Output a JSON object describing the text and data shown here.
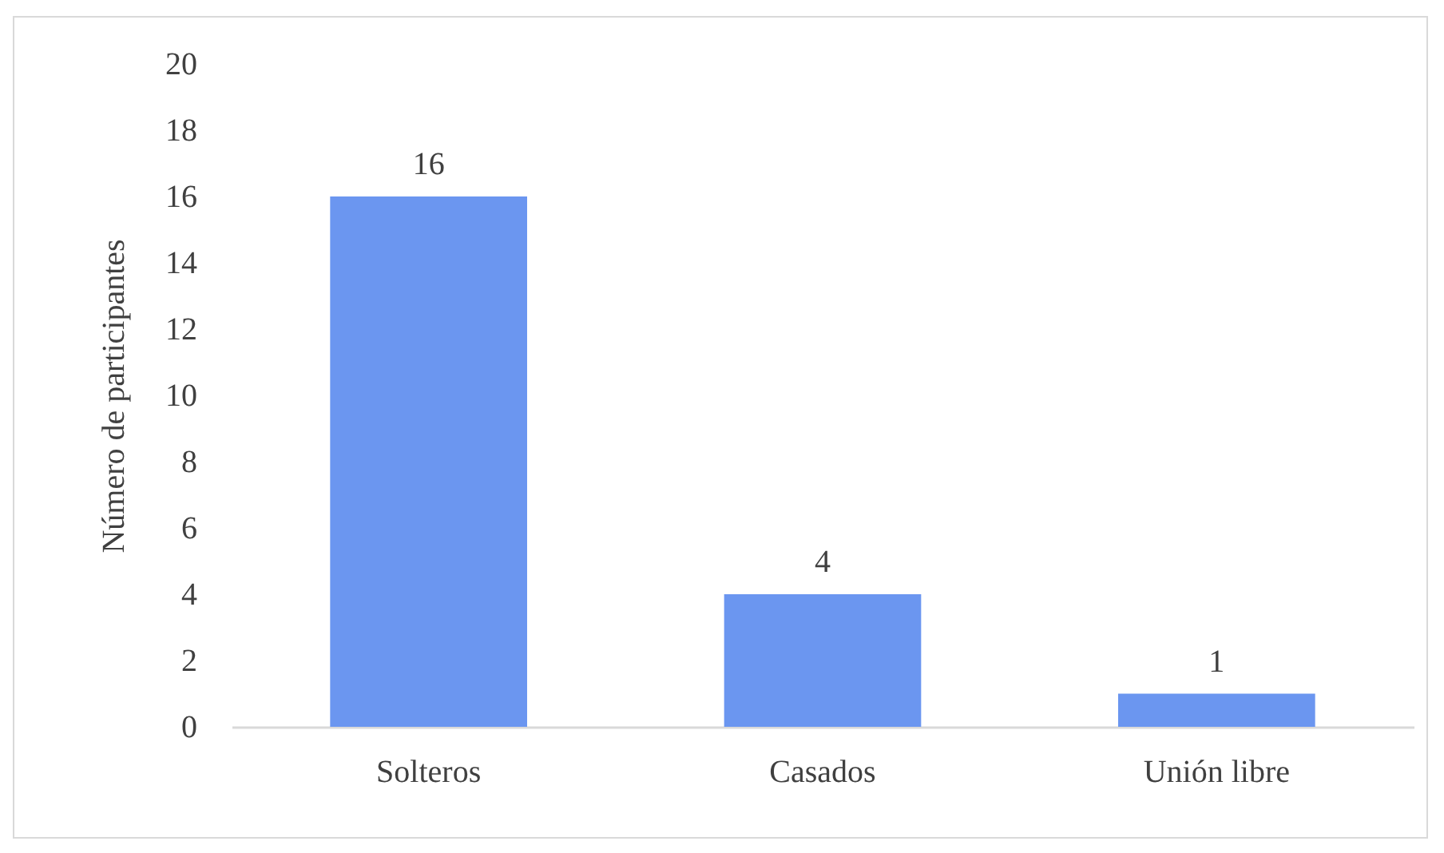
{
  "chart_data": {
    "type": "bar",
    "ylabel": "Número de participantes",
    "categories": [
      "Solteros",
      "Casados",
      "Unión libre"
    ],
    "values": [
      16,
      4,
      1
    ],
    "color": "#6b96f0",
    "ylim": [
      0,
      20
    ],
    "yticks": [
      0,
      2,
      4,
      6,
      8,
      10,
      12,
      14,
      16,
      18,
      20
    ],
    "grid": false,
    "data_labels": true
  }
}
